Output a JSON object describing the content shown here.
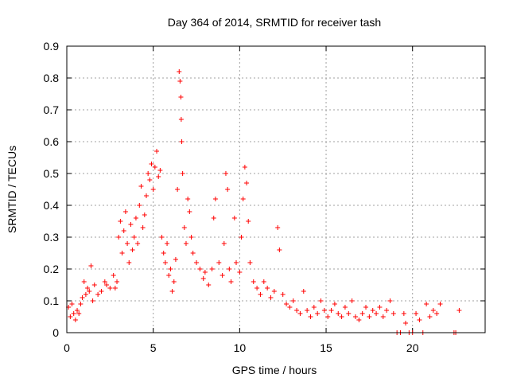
{
  "chart_data": {
    "type": "scatter",
    "title": "Day 364 of 2014, SRMTID for receiver tash",
    "xlabel": "GPS time / hours",
    "ylabel": "SRMTID / TECUs",
    "xlim": [
      0,
      24.2
    ],
    "ylim": [
      0,
      0.9
    ],
    "xticks": [
      0,
      5,
      10,
      15,
      20
    ],
    "yticks": [
      0,
      0.1,
      0.2,
      0.3,
      0.4,
      0.5,
      0.6,
      0.7,
      0.8,
      0.9
    ],
    "grid": true,
    "marker": "+",
    "color": "#ff0000",
    "series": [
      {
        "name": "SRMTID",
        "points": [
          [
            0.1,
            0.08
          ],
          [
            0.2,
            0.05
          ],
          [
            0.3,
            0.09
          ],
          [
            0.4,
            0.06
          ],
          [
            0.5,
            0.04
          ],
          [
            0.6,
            0.07
          ],
          [
            0.7,
            0.06
          ],
          [
            0.8,
            0.09
          ],
          [
            0.9,
            0.11
          ],
          [
            1.0,
            0.16
          ],
          [
            1.1,
            0.12
          ],
          [
            1.2,
            0.14
          ],
          [
            1.3,
            0.13
          ],
          [
            1.4,
            0.21
          ],
          [
            1.5,
            0.1
          ],
          [
            1.6,
            0.15
          ],
          [
            1.8,
            0.12
          ],
          [
            2.0,
            0.13
          ],
          [
            2.2,
            0.16
          ],
          [
            2.3,
            0.15
          ],
          [
            2.5,
            0.14
          ],
          [
            2.7,
            0.18
          ],
          [
            2.8,
            0.14
          ],
          [
            2.9,
            0.16
          ],
          [
            3.0,
            0.3
          ],
          [
            3.1,
            0.35
          ],
          [
            3.2,
            0.25
          ],
          [
            3.3,
            0.32
          ],
          [
            3.4,
            0.38
          ],
          [
            3.5,
            0.28
          ],
          [
            3.6,
            0.22
          ],
          [
            3.7,
            0.34
          ],
          [
            3.8,
            0.26
          ],
          [
            3.9,
            0.3
          ],
          [
            4.0,
            0.36
          ],
          [
            4.1,
            0.28
          ],
          [
            4.2,
            0.4
          ],
          [
            4.3,
            0.46
          ],
          [
            4.4,
            0.33
          ],
          [
            4.5,
            0.37
          ],
          [
            4.6,
            0.43
          ],
          [
            4.7,
            0.5
          ],
          [
            4.8,
            0.48
          ],
          [
            4.9,
            0.53
          ],
          [
            5.0,
            0.45
          ],
          [
            5.1,
            0.52
          ],
          [
            5.2,
            0.57
          ],
          [
            5.3,
            0.49
          ],
          [
            5.4,
            0.51
          ],
          [
            5.5,
            0.3
          ],
          [
            5.6,
            0.25
          ],
          [
            5.7,
            0.22
          ],
          [
            5.8,
            0.28
          ],
          [
            5.9,
            0.18
          ],
          [
            6.0,
            0.2
          ],
          [
            6.1,
            0.13
          ],
          [
            6.2,
            0.16
          ],
          [
            6.3,
            0.23
          ],
          [
            6.4,
            0.45
          ],
          [
            6.5,
            0.82
          ],
          [
            6.55,
            0.79
          ],
          [
            6.6,
            0.74
          ],
          [
            6.62,
            0.67
          ],
          [
            6.65,
            0.6
          ],
          [
            6.7,
            0.5
          ],
          [
            6.8,
            0.33
          ],
          [
            6.9,
            0.28
          ],
          [
            7.0,
            0.42
          ],
          [
            7.1,
            0.38
          ],
          [
            7.2,
            0.3
          ],
          [
            7.3,
            0.25
          ],
          [
            7.5,
            0.22
          ],
          [
            7.7,
            0.2
          ],
          [
            7.9,
            0.17
          ],
          [
            8.0,
            0.19
          ],
          [
            8.2,
            0.15
          ],
          [
            8.4,
            0.2
          ],
          [
            8.5,
            0.36
          ],
          [
            8.6,
            0.42
          ],
          [
            8.8,
            0.22
          ],
          [
            9.0,
            0.18
          ],
          [
            9.1,
            0.28
          ],
          [
            9.2,
            0.5
          ],
          [
            9.3,
            0.45
          ],
          [
            9.4,
            0.2
          ],
          [
            9.5,
            0.16
          ],
          [
            9.7,
            0.36
          ],
          [
            9.8,
            0.22
          ],
          [
            10.0,
            0.19
          ],
          [
            10.1,
            0.3
          ],
          [
            10.2,
            0.42
          ],
          [
            10.3,
            0.52
          ],
          [
            10.4,
            0.47
          ],
          [
            10.5,
            0.35
          ],
          [
            10.6,
            0.22
          ],
          [
            10.8,
            0.16
          ],
          [
            11.0,
            0.14
          ],
          [
            11.2,
            0.12
          ],
          [
            11.4,
            0.16
          ],
          [
            11.6,
            0.14
          ],
          [
            11.8,
            0.11
          ],
          [
            12.0,
            0.13
          ],
          [
            12.2,
            0.33
          ],
          [
            12.3,
            0.26
          ],
          [
            12.5,
            0.12
          ],
          [
            12.7,
            0.09
          ],
          [
            12.9,
            0.08
          ],
          [
            13.1,
            0.1
          ],
          [
            13.3,
            0.07
          ],
          [
            13.5,
            0.06
          ],
          [
            13.7,
            0.13
          ],
          [
            13.9,
            0.07
          ],
          [
            14.1,
            0.05
          ],
          [
            14.3,
            0.08
          ],
          [
            14.5,
            0.06
          ],
          [
            14.7,
            0.1
          ],
          [
            14.9,
            0.07
          ],
          [
            15.1,
            0.05
          ],
          [
            15.3,
            0.07
          ],
          [
            15.5,
            0.09
          ],
          [
            15.7,
            0.06
          ],
          [
            15.9,
            0.05
          ],
          [
            16.1,
            0.08
          ],
          [
            16.3,
            0.06
          ],
          [
            16.5,
            0.1
          ],
          [
            16.7,
            0.05
          ],
          [
            16.9,
            0.04
          ],
          [
            17.1,
            0.06
          ],
          [
            17.3,
            0.08
          ],
          [
            17.5,
            0.05
          ],
          [
            17.7,
            0.07
          ],
          [
            17.9,
            0.06
          ],
          [
            18.1,
            0.08
          ],
          [
            18.3,
            0.05
          ],
          [
            18.5,
            0.07
          ],
          [
            18.7,
            0.1
          ],
          [
            18.9,
            0.06
          ],
          [
            19.1,
            0.0
          ],
          [
            19.3,
            0.0
          ],
          [
            19.5,
            0.06
          ],
          [
            19.6,
            0.03
          ],
          [
            19.8,
            0.0
          ],
          [
            20.0,
            0.0
          ],
          [
            20.2,
            0.06
          ],
          [
            20.4,
            0.04
          ],
          [
            20.6,
            0.0
          ],
          [
            20.8,
            0.09
          ],
          [
            21.0,
            0.05
          ],
          [
            21.2,
            0.07
          ],
          [
            21.4,
            0.06
          ],
          [
            21.6,
            0.09
          ],
          [
            22.4,
            0.0
          ],
          [
            22.5,
            0.0
          ],
          [
            22.7,
            0.07
          ]
        ]
      }
    ]
  }
}
